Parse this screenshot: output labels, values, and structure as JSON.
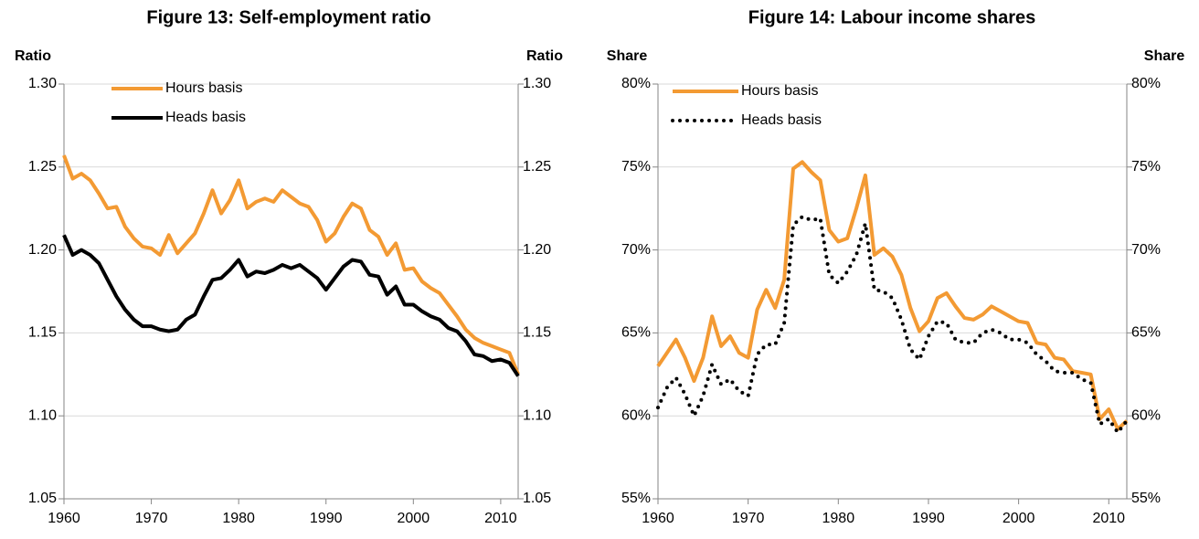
{
  "chart_data": [
    {
      "type": "line",
      "title": "Figure 13: Self-employment ratio",
      "y_label": "Ratio",
      "y2_label": "Ratio",
      "x": [
        1960,
        1961,
        1962,
        1963,
        1964,
        1965,
        1966,
        1967,
        1968,
        1969,
        1970,
        1971,
        1972,
        1973,
        1974,
        1975,
        1976,
        1977,
        1978,
        1979,
        1980,
        1981,
        1982,
        1983,
        1984,
        1985,
        1986,
        1987,
        1988,
        1989,
        1990,
        1991,
        1992,
        1993,
        1994,
        1995,
        1996,
        1997,
        1998,
        1999,
        2000,
        2001,
        2002,
        2003,
        2004,
        2005,
        2006,
        2007,
        2008,
        2009,
        2010,
        2011,
        2012
      ],
      "series": [
        {
          "name": "Hours basis",
          "color": "#f39a33",
          "style": "solid",
          "values": [
            1.257,
            1.243,
            1.246,
            1.242,
            1.234,
            1.225,
            1.226,
            1.214,
            1.207,
            1.202,
            1.201,
            1.197,
            1.209,
            1.198,
            1.204,
            1.21,
            1.222,
            1.236,
            1.222,
            1.23,
            1.242,
            1.225,
            1.229,
            1.231,
            1.229,
            1.236,
            1.232,
            1.228,
            1.226,
            1.218,
            1.205,
            1.21,
            1.22,
            1.228,
            1.225,
            1.212,
            1.208,
            1.197,
            1.204,
            1.188,
            1.189,
            1.181,
            1.177,
            1.174,
            1.167,
            1.16,
            1.152,
            1.147,
            1.144,
            1.142,
            1.14,
            1.138,
            1.125
          ]
        },
        {
          "name": "Heads basis",
          "color": "#000000",
          "style": "solid",
          "values": [
            1.209,
            1.197,
            1.2,
            1.197,
            1.192,
            1.182,
            1.172,
            1.164,
            1.158,
            1.154,
            1.154,
            1.152,
            1.151,
            1.152,
            1.158,
            1.161,
            1.172,
            1.182,
            1.183,
            1.188,
            1.194,
            1.184,
            1.187,
            1.186,
            1.188,
            1.191,
            1.189,
            1.191,
            1.187,
            1.183,
            1.176,
            1.183,
            1.19,
            1.194,
            1.193,
            1.185,
            1.184,
            1.173,
            1.178,
            1.167,
            1.167,
            1.163,
            1.16,
            1.158,
            1.153,
            1.151,
            1.145,
            1.137,
            1.136,
            1.133,
            1.134,
            1.132,
            1.124
          ]
        }
      ],
      "xlim": [
        1960,
        2012
      ],
      "xticks": [
        1960,
        1970,
        1980,
        1990,
        2000,
        2010
      ],
      "ylim": [
        1.05,
        1.3
      ],
      "yticks": [
        {
          "value": 1.05,
          "label": "1.05"
        },
        {
          "value": 1.1,
          "label": "1.10"
        },
        {
          "value": 1.15,
          "label": "1.15"
        },
        {
          "value": 1.2,
          "label": "1.20"
        },
        {
          "value": 1.25,
          "label": "1.25"
        },
        {
          "value": 1.3,
          "label": "1.30"
        }
      ],
      "y2lim": [
        1.05,
        1.3
      ],
      "y2ticks": [
        {
          "value": 1.05,
          "label": "1.05"
        },
        {
          "value": 1.1,
          "label": "1.10"
        },
        {
          "value": 1.15,
          "label": "1.15"
        },
        {
          "value": 1.2,
          "label": "1.20"
        },
        {
          "value": 1.25,
          "label": "1.25"
        },
        {
          "value": 1.3,
          "label": "1.30"
        }
      ],
      "grid": true
    },
    {
      "type": "line",
      "title": "Figure 14: Labour income shares",
      "y_label": "Share",
      "y2_label": "Share",
      "x": [
        1960,
        1961,
        1962,
        1963,
        1964,
        1965,
        1966,
        1967,
        1968,
        1969,
        1970,
        1971,
        1972,
        1973,
        1974,
        1975,
        1976,
        1977,
        1978,
        1979,
        1980,
        1981,
        1982,
        1983,
        1984,
        1985,
        1986,
        1987,
        1988,
        1989,
        1990,
        1991,
        1992,
        1993,
        1994,
        1995,
        1996,
        1997,
        1998,
        1999,
        2000,
        2001,
        2002,
        2003,
        2004,
        2005,
        2006,
        2007,
        2008,
        2009,
        2010,
        2011,
        2012
      ],
      "series": [
        {
          "name": "Hours basis",
          "color": "#f39a33",
          "style": "solid",
          "values": [
            63.0,
            63.8,
            64.6,
            63.5,
            62.1,
            63.5,
            66.0,
            64.2,
            64.8,
            63.8,
            63.5,
            66.4,
            67.6,
            66.5,
            68.2,
            74.9,
            75.3,
            74.7,
            74.2,
            71.2,
            70.5,
            70.7,
            72.5,
            74.5,
            69.7,
            70.1,
            69.6,
            68.5,
            66.5,
            65.1,
            65.7,
            67.1,
            67.4,
            66.6,
            65.9,
            65.8,
            66.1,
            66.6,
            66.3,
            66.0,
            65.7,
            65.6,
            64.4,
            64.3,
            63.5,
            63.4,
            62.7,
            62.6,
            62.5,
            59.8,
            60.4,
            59.2,
            59.7
          ]
        },
        {
          "name": "Heads basis",
          "color": "#000000",
          "style": "dotted",
          "values": [
            60.5,
            61.7,
            62.3,
            61.3,
            60.0,
            61.2,
            63.1,
            61.9,
            62.2,
            61.5,
            61.2,
            63.7,
            64.3,
            64.3,
            65.6,
            71.5,
            72.0,
            71.8,
            71.9,
            68.5,
            68.0,
            68.7,
            69.7,
            71.6,
            67.6,
            67.5,
            67.1,
            65.8,
            64.0,
            63.4,
            64.8,
            65.7,
            65.6,
            64.6,
            64.4,
            64.4,
            65.0,
            65.2,
            65.0,
            64.6,
            64.6,
            64.4,
            63.7,
            63.3,
            62.7,
            62.6,
            62.6,
            62.2,
            62.0,
            59.5,
            59.8,
            59.0,
            59.7
          ]
        }
      ],
      "xlim": [
        1960,
        2012
      ],
      "xticks": [
        1960,
        1970,
        1980,
        1990,
        2000,
        2010
      ],
      "ylim": [
        55,
        80
      ],
      "yticks": [
        {
          "value": 55,
          "label": "55%"
        },
        {
          "value": 60,
          "label": "60%"
        },
        {
          "value": 65,
          "label": "65%"
        },
        {
          "value": 70,
          "label": "70%"
        },
        {
          "value": 75,
          "label": "75%"
        },
        {
          "value": 80,
          "label": "80%"
        }
      ],
      "y2lim": [
        55,
        80
      ],
      "y2ticks": [
        {
          "value": 55,
          "label": "55%"
        },
        {
          "value": 60,
          "label": "60%"
        },
        {
          "value": 65,
          "label": "65%"
        },
        {
          "value": 70,
          "label": "70%"
        },
        {
          "value": 75,
          "label": "75%"
        },
        {
          "value": 80,
          "label": "80%"
        }
      ],
      "grid": true
    }
  ]
}
